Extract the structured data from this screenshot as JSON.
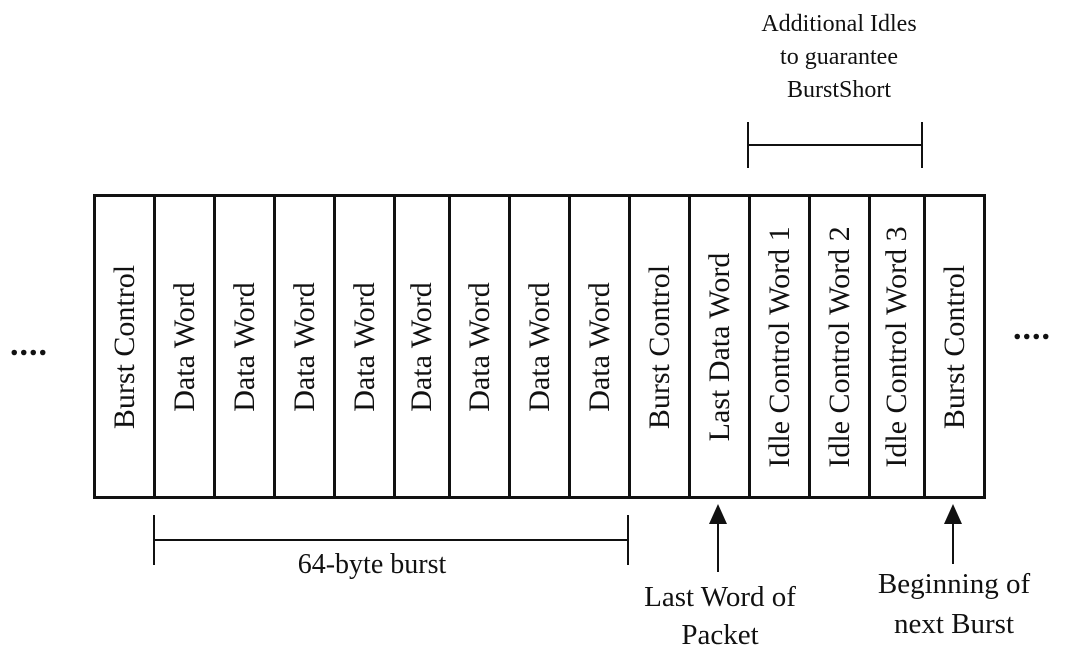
{
  "cells": [
    {
      "label": "Burst Control"
    },
    {
      "label": "Data Word"
    },
    {
      "label": "Data Word"
    },
    {
      "label": "Data Word"
    },
    {
      "label": "Data Word"
    },
    {
      "label": "Data Word"
    },
    {
      "label": "Data Word"
    },
    {
      "label": "Data Word"
    },
    {
      "label": "Data Word"
    },
    {
      "label": "Burst Control"
    },
    {
      "label": "Last Data Word"
    },
    {
      "label": "Idle Control Word 1"
    },
    {
      "label": "Idle Control Word 2"
    },
    {
      "label": "Idle Control Word 3"
    },
    {
      "label": "Burst Control"
    }
  ],
  "ellipsis_left": "....",
  "ellipsis_right": "....",
  "top_caption": {
    "line1": "Additional Idles",
    "line2": "to guarantee",
    "line3": "BurstShort"
  },
  "burst_caption": "64-byte burst",
  "last_word_caption": {
    "line1": "Last Word of",
    "line2": "Packet"
  },
  "next_burst_caption": {
    "line1": "Beginning of",
    "line2": "next Burst"
  }
}
